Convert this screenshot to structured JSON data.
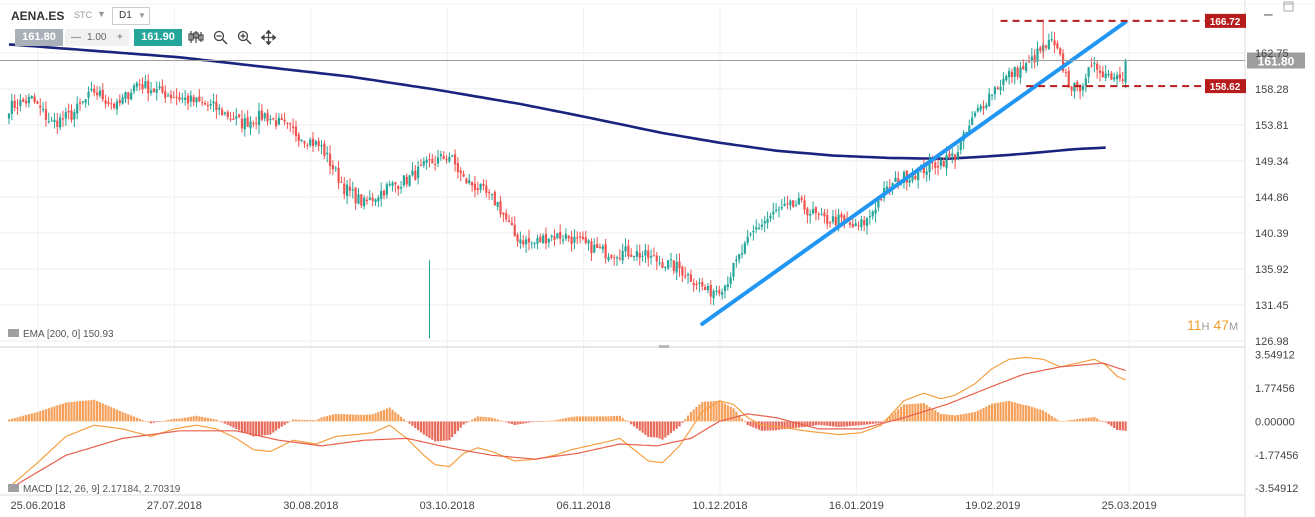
{
  "header": {
    "symbol": "AENA.ES",
    "instrument_type": "STC",
    "timeframe": "D1",
    "bid": "161.80",
    "spread_minus": "—",
    "spread": "1.00",
    "spread_plus": "+",
    "ask": "161.90",
    "tools": [
      "candles-icon",
      "zoom-out-icon",
      "zoom-in-icon",
      "move-icon"
    ],
    "window_buttons": [
      "minimize-icon",
      "maximize-icon"
    ]
  },
  "colors": {
    "up": "#26a69a",
    "down": "#ef5350",
    "ema": "#1a237e",
    "trend": "#2196f3",
    "level": "#b71c1c",
    "hist_up": "#f5a05a",
    "hist_down": "#e86a5a",
    "macd_line": "#f5a040",
    "signal_line": "#e8604c",
    "countdown": "#f0a030"
  },
  "chart_data": [
    {
      "type": "candlestick",
      "x_ticks": [
        "25.06.2018",
        "27.07.2018",
        "30.08.2018",
        "03.10.2018",
        "06.11.2018",
        "10.12.2018",
        "16.01.2019",
        "19.02.2019",
        "25.03.2019"
      ],
      "y_ticks": [
        "162.75",
        "158.28",
        "153.81",
        "149.34",
        "144.86",
        "140.39",
        "135.92",
        "131.45",
        "126.98"
      ],
      "ylim": [
        126.98,
        167.2
      ],
      "current_price": "161.80",
      "levels": [
        {
          "value": 166.72,
          "label": "166.72"
        },
        {
          "value": 158.62,
          "label": "158.62"
        }
      ],
      "indicator_label": "EMA [200, 0] 150.93",
      "countdown": {
        "h": "11",
        "h_unit": "H",
        "m": "47",
        "m_unit": "M"
      },
      "anchors": [
        [
          0,
          156
        ],
        [
          8,
          157
        ],
        [
          15,
          154
        ],
        [
          22,
          155
        ],
        [
          30,
          158
        ],
        [
          38,
          156
        ],
        [
          45,
          159
        ],
        [
          52,
          158
        ],
        [
          62,
          157
        ],
        [
          72,
          156
        ],
        [
          82,
          154
        ],
        [
          90,
          155
        ],
        [
          100,
          153
        ],
        [
          110,
          151
        ],
        [
          118,
          146
        ],
        [
          125,
          144
        ],
        [
          133,
          146
        ],
        [
          140,
          147
        ],
        [
          148,
          149
        ],
        [
          155,
          150
        ],
        [
          160,
          147
        ],
        [
          165,
          146
        ],
        [
          172,
          144
        ],
        [
          178,
          140
        ],
        [
          184,
          139
        ],
        [
          190,
          140
        ],
        [
          196,
          140
        ],
        [
          202,
          139
        ],
        [
          210,
          138
        ],
        [
          215,
          138
        ],
        [
          220,
          138
        ],
        [
          228,
          137
        ],
        [
          236,
          136
        ],
        [
          243,
          134
        ],
        [
          246,
          133
        ],
        [
          252,
          134
        ],
        [
          258,
          138
        ],
        [
          263,
          141
        ],
        [
          270,
          143
        ],
        [
          278,
          144
        ],
        [
          286,
          142
        ],
        [
          292,
          142
        ],
        [
          298,
          141
        ],
        [
          302,
          142
        ],
        [
          307,
          145
        ],
        [
          313,
          147
        ],
        [
          320,
          148
        ],
        [
          326,
          149
        ],
        [
          333,
          150
        ],
        [
          340,
          155
        ],
        [
          346,
          158
        ],
        [
          352,
          160
        ],
        [
          358,
          161
        ],
        [
          363,
          163
        ],
        [
          367,
          164
        ],
        [
          370,
          162
        ],
        [
          373,
          159
        ],
        [
          376,
          158
        ],
        [
          379,
          160
        ],
        [
          383,
          161
        ],
        [
          387,
          160
        ]
      ],
      "ema_curve": [
        [
          0,
          163.8
        ],
        [
          30,
          163.0
        ],
        [
          60,
          162.2
        ],
        [
          90,
          161.0
        ],
        [
          120,
          159.8
        ],
        [
          150,
          158.2
        ],
        [
          180,
          156.4
        ],
        [
          200,
          155.0
        ],
        [
          230,
          152.8
        ],
        [
          250,
          151.6
        ],
        [
          270,
          150.6
        ],
        [
          290,
          150.0
        ],
        [
          310,
          149.7
        ],
        [
          330,
          149.6
        ],
        [
          345,
          149.9
        ],
        [
          360,
          150.3
        ],
        [
          375,
          150.8
        ],
        [
          387,
          151.0
        ]
      ],
      "trendline": [
        [
          244,
          129.1
        ],
        [
          393,
          166.6
        ]
      ]
    },
    {
      "type": "macd",
      "indicator_label": "MACD [12, 26, 9] 2.17184, 2.70319",
      "y_ticks": [
        "3.54912",
        "1.77456",
        "0.00000",
        "-1.77456",
        "-3.54912"
      ],
      "ylim": [
        -3.75,
        3.9
      ],
      "macd_anchors": [
        [
          0,
          -3.5
        ],
        [
          10,
          -2.2
        ],
        [
          20,
          -0.8
        ],
        [
          30,
          -0.2
        ],
        [
          40,
          -0.4
        ],
        [
          50,
          -0.8
        ],
        [
          58,
          -0.4
        ],
        [
          66,
          -0.2
        ],
        [
          73,
          -0.4
        ],
        [
          80,
          -0.9
        ],
        [
          86,
          -1.5
        ],
        [
          92,
          -1.6
        ],
        [
          100,
          -1.0
        ],
        [
          108,
          -1.2
        ],
        [
          115,
          -0.8
        ],
        [
          122,
          -0.7
        ],
        [
          128,
          -0.6
        ],
        [
          134,
          -0.2
        ],
        [
          140,
          -0.9
        ],
        [
          146,
          -1.8
        ],
        [
          150,
          -2.3
        ],
        [
          155,
          -2.4
        ],
        [
          160,
          -1.7
        ],
        [
          165,
          -1.4
        ],
        [
          170,
          -1.6
        ],
        [
          178,
          -2.1
        ],
        [
          186,
          -2.0
        ],
        [
          192,
          -1.8
        ],
        [
          198,
          -1.5
        ],
        [
          204,
          -1.3
        ],
        [
          210,
          -1.1
        ],
        [
          215,
          -0.9
        ],
        [
          220,
          -1.5
        ],
        [
          225,
          -2.1
        ],
        [
          230,
          -2.2
        ],
        [
          236,
          -1.3
        ],
        [
          244,
          0.5
        ],
        [
          250,
          1.1
        ],
        [
          255,
          0.9
        ],
        [
          260,
          0.2
        ],
        [
          265,
          -0.2
        ],
        [
          272,
          -0.3
        ],
        [
          280,
          -0.5
        ],
        [
          292,
          -0.7
        ],
        [
          300,
          -0.6
        ],
        [
          307,
          -0.2
        ],
        [
          315,
          1.1
        ],
        [
          322,
          1.5
        ],
        [
          328,
          1.2
        ],
        [
          333,
          1.4
        ],
        [
          340,
          2.0
        ],
        [
          346,
          2.8
        ],
        [
          352,
          3.3
        ],
        [
          358,
          3.4
        ],
        [
          364,
          3.3
        ],
        [
          370,
          2.9
        ],
        [
          376,
          3.1
        ],
        [
          382,
          3.3
        ],
        [
          386,
          3.0
        ],
        [
          390,
          2.4
        ],
        [
          393,
          2.2
        ]
      ],
      "signal_anchors": [
        [
          0,
          -3.6
        ],
        [
          20,
          -1.8
        ],
        [
          40,
          -0.9
        ],
        [
          60,
          -0.5
        ],
        [
          80,
          -0.5
        ],
        [
          95,
          -1.0
        ],
        [
          110,
          -1.3
        ],
        [
          125,
          -1.0
        ],
        [
          140,
          -0.9
        ],
        [
          155,
          -1.4
        ],
        [
          170,
          -1.8
        ],
        [
          185,
          -2.0
        ],
        [
          200,
          -1.7
        ],
        [
          215,
          -1.2
        ],
        [
          228,
          -1.3
        ],
        [
          240,
          -0.9
        ],
        [
          250,
          0.0
        ],
        [
          260,
          0.4
        ],
        [
          270,
          0.2
        ],
        [
          285,
          -0.4
        ],
        [
          300,
          -0.4
        ],
        [
          315,
          0.2
        ],
        [
          330,
          0.9
        ],
        [
          345,
          1.8
        ],
        [
          357,
          2.5
        ],
        [
          370,
          2.9
        ],
        [
          385,
          3.1
        ],
        [
          393,
          2.7
        ]
      ]
    }
  ]
}
